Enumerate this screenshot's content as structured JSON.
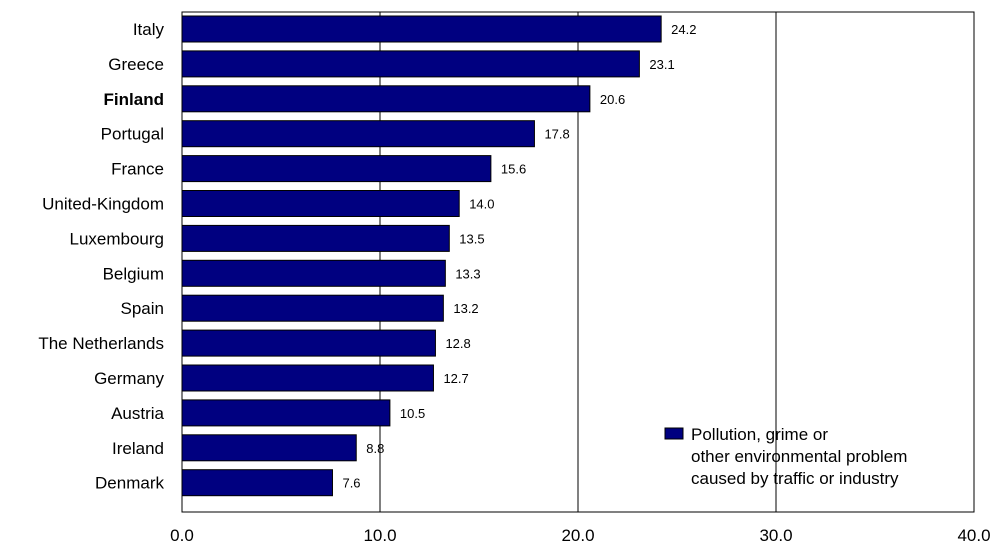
{
  "chart_data": {
    "type": "bar",
    "orientation": "horizontal",
    "categories": [
      "Italy",
      "Greece",
      "Finland",
      "Portugal",
      "France",
      "United-Kingdom",
      "Luxembourg",
      "Belgium",
      "Spain",
      "The Netherlands",
      "Germany",
      "Austria",
      "Ireland",
      "Denmark"
    ],
    "highlighted_category": "Finland",
    "series": [
      {
        "name": "Pollution, grime or other environmental problem caused by traffic or industry",
        "name_lines": [
          "Pollution, grime or",
          "other environmental problem",
          "caused by traffic or industry"
        ],
        "color": "#000080",
        "values": [
          24.2,
          23.1,
          20.6,
          17.8,
          15.6,
          14.0,
          13.5,
          13.3,
          13.2,
          12.8,
          12.7,
          10.5,
          8.8,
          7.6
        ],
        "value_labels": [
          "24.2",
          "23.1",
          "20.6",
          "17.8",
          "15.6",
          "14.0",
          "13.5",
          "13.3",
          "13.2",
          "12.8",
          "12.7",
          "10.5",
          "8.8",
          "7.6"
        ]
      }
    ],
    "xlim": [
      0,
      40
    ],
    "xticks": [
      0,
      10,
      20,
      30,
      40
    ],
    "xtick_labels": [
      "0.0",
      "10.0",
      "20.0",
      "30.0",
      "40.0"
    ],
    "grid": "vertical",
    "legend_position": "bottom-right",
    "title": "",
    "xlabel": "",
    "ylabel": ""
  }
}
